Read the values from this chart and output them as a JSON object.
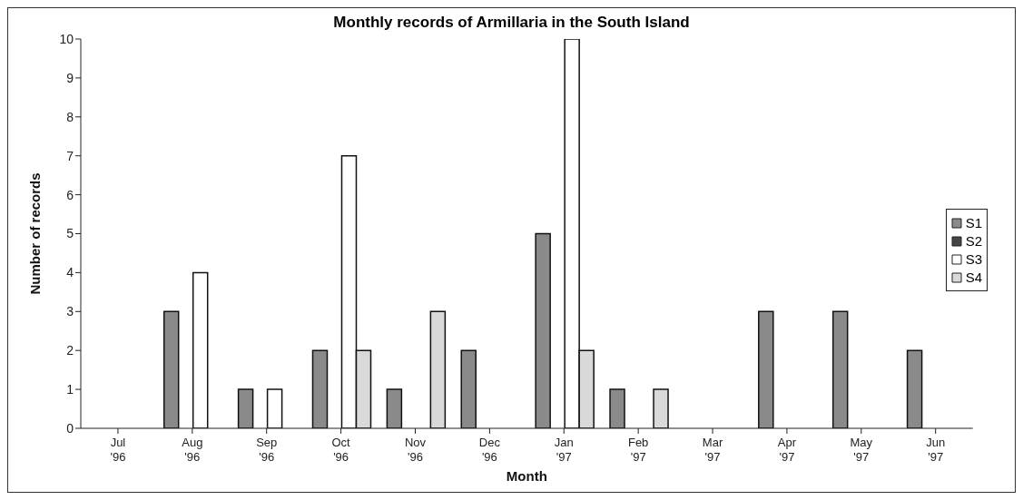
{
  "chart_data": {
    "type": "bar",
    "title": "Monthly records of Armillaria in the South Island",
    "xlabel": "Month",
    "ylabel": "Number of records",
    "categories": [
      "Jul '96",
      "Aug '96",
      "Sep '96",
      "Oct '96",
      "Nov '96",
      "Dec '96",
      "Jan '97",
      "Feb '97",
      "Mar '97",
      "Apr '97",
      "May '97",
      "Jun '97"
    ],
    "series": [
      {
        "name": "S1",
        "color": "#8a8a8a",
        "values": [
          0,
          3,
          1,
          2,
          1,
          2,
          5,
          1,
          0,
          3,
          3,
          2
        ]
      },
      {
        "name": "S2",
        "color": "#444444",
        "values": [
          0,
          0,
          0,
          0,
          0,
          0,
          0,
          0,
          0,
          0,
          0,
          0
        ]
      },
      {
        "name": "S3",
        "color": "#ffffff",
        "values": [
          0,
          4,
          1,
          7,
          0,
          0,
          10,
          0,
          0,
          0,
          0,
          0
        ]
      },
      {
        "name": "S4",
        "color": "#d9d9d9",
        "values": [
          0,
          0,
          0,
          2,
          3,
          0,
          2,
          1,
          0,
          0,
          0,
          0
        ]
      }
    ],
    "ylim": [
      0,
      10
    ],
    "yticks": [
      0,
      1,
      2,
      3,
      4,
      5,
      6,
      7,
      8,
      9,
      10
    ],
    "grid": false,
    "legend": "right"
  }
}
